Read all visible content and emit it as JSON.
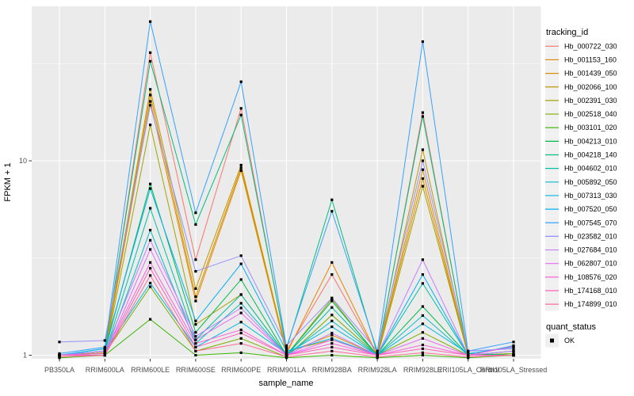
{
  "chart_data": {
    "type": "line",
    "title": "",
    "xlabel": "sample_name",
    "ylabel": "FPKM + 1",
    "y_scale": "log10",
    "y_ticks": [
      1,
      10
    ],
    "y_minor_ticks": [
      3.1623,
      31.623
    ],
    "ylim": [
      0.95,
      65
    ],
    "grid": "on",
    "legend_position": "right",
    "categories": [
      "PB350LA",
      "RRIM600LA",
      "RRIM600LE",
      "RRIM600SE",
      "RRIM600PE",
      "RRIM901LA",
      "RRIM928BA",
      "RRIM928LA",
      "RRIM928LE",
      "RRII105LA_Control",
      "RRII105LA_Stressed"
    ],
    "series": [
      {
        "name": "Hb_000722_030",
        "color": "#F8766D",
        "values": [
          1.0,
          1.05,
          36.0,
          3.1,
          18.6,
          1.05,
          2.6,
          1.0,
          17.7,
          1.0,
          1.05
        ]
      },
      {
        "name": "Hb_001153_160",
        "color": "#E58700",
        "values": [
          1.0,
          1.02,
          20.2,
          1.9,
          8.9,
          1.02,
          3.0,
          1.0,
          8.1,
          1.0,
          1.0
        ]
      },
      {
        "name": "Hb_001439_050",
        "color": "#D89000",
        "values": [
          1.0,
          1.03,
          21.8,
          2.0,
          9.2,
          1.03,
          1.27,
          1.0,
          9.0,
          1.0,
          1.0
        ]
      },
      {
        "name": "Hb_002066_100",
        "color": "#C09B00",
        "values": [
          1.0,
          1.05,
          23.3,
          2.2,
          9.5,
          1.05,
          1.2,
          1.0,
          11.4,
          1.0,
          1.02
        ]
      },
      {
        "name": "Hb_002391_030",
        "color": "#A3A500",
        "values": [
          0.98,
          1.0,
          15.3,
          1.44,
          2.05,
          1.0,
          1.95,
          0.98,
          7.4,
          1.0,
          1.0
        ]
      },
      {
        "name": "Hb_002518_040",
        "color": "#7CAE00",
        "values": [
          1.0,
          1.02,
          2.25,
          1.05,
          1.22,
          0.98,
          1.61,
          1.0,
          1.31,
          1.0,
          1.02
        ]
      },
      {
        "name": "Hb_003101_020",
        "color": "#39B600",
        "values": [
          0.97,
          1.0,
          1.53,
          1.0,
          1.03,
          0.97,
          1.0,
          0.97,
          1.0,
          0.97,
          1.0
        ]
      },
      {
        "name": "Hb_004213_010",
        "color": "#00BB4E",
        "values": [
          1.0,
          1.05,
          7.6,
          1.31,
          2.45,
          1.0,
          1.9,
          1.0,
          1.78,
          1.0,
          1.0
        ]
      },
      {
        "name": "Hb_004218_140",
        "color": "#00BF7D",
        "values": [
          1.0,
          1.08,
          32.5,
          4.7,
          17.2,
          1.08,
          6.3,
          1.02,
          16.9,
          1.02,
          1.0
        ]
      },
      {
        "name": "Hb_004602_010",
        "color": "#00C1A3",
        "values": [
          1.0,
          1.02,
          5.7,
          1.2,
          2.05,
          1.0,
          1.76,
          1.0,
          2.34,
          1.0,
          1.0
        ]
      },
      {
        "name": "Hb_005892_050",
        "color": "#00BFC4",
        "values": [
          1.0,
          1.0,
          4.4,
          1.15,
          1.85,
          1.0,
          1.5,
          1.0,
          1.6,
          1.0,
          1.05
        ]
      },
      {
        "name": "Hb_007313_030",
        "color": "#00BAE0",
        "values": [
          1.0,
          1.05,
          2.35,
          1.1,
          1.48,
          1.02,
          1.4,
          1.0,
          1.45,
          1.02,
          1.1
        ]
      },
      {
        "name": "Hb_007520_050",
        "color": "#00B0F6",
        "values": [
          1.0,
          1.08,
          7.2,
          1.5,
          2.95,
          1.05,
          1.22,
          1.0,
          2.6,
          1.0,
          1.12
        ]
      },
      {
        "name": "Hb_007545_070",
        "color": "#35A2FF",
        "values": [
          1.02,
          1.1,
          52.0,
          5.4,
          25.5,
          1.1,
          5.5,
          1.05,
          41.0,
          1.05,
          1.17
        ]
      },
      {
        "name": "Hb_023582_010",
        "color": "#9590FF",
        "values": [
          1.17,
          1.19,
          19.3,
          2.7,
          3.25,
          1.12,
          1.97,
          1.05,
          10.0,
          1.05,
          1.08
        ]
      },
      {
        "name": "Hb_027684_010",
        "color": "#C77CFF",
        "values": [
          1.0,
          1.05,
          3.9,
          1.25,
          1.75,
          1.0,
          1.3,
          1.0,
          3.1,
          1.0,
          1.05
        ]
      },
      {
        "name": "Hb_062807_010",
        "color": "#E76BF3",
        "values": [
          1.0,
          1.0,
          3.5,
          1.2,
          1.65,
          1.0,
          1.2,
          1.0,
          1.22,
          1.0,
          1.0
        ]
      },
      {
        "name": "Hb_108576_020",
        "color": "#FA62DB",
        "values": [
          1.0,
          1.02,
          3.0,
          1.15,
          1.35,
          1.0,
          1.15,
          1.0,
          1.13,
          1.0,
          1.11
        ]
      },
      {
        "name": "Hb_174168_010",
        "color": "#FF62BC",
        "values": [
          1.0,
          1.0,
          2.8,
          1.1,
          1.3,
          1.0,
          1.1,
          1.0,
          1.08,
          1.0,
          1.0
        ]
      },
      {
        "name": "Hb_174899_010",
        "color": "#FF6A98",
        "values": [
          0.98,
          1.0,
          2.57,
          1.05,
          1.15,
          0.98,
          1.05,
          0.98,
          1.03,
          0.98,
          1.0
        ]
      }
    ],
    "points": {
      "shape": "filled-square",
      "color": "#000000"
    },
    "legend": {
      "color": {
        "title": "tracking_id"
      },
      "shape": {
        "title": "quant_status",
        "items": [
          {
            "label": "OK",
            "color": "#000000"
          }
        ]
      }
    },
    "style": {
      "panel_bg": "#EBEBEB",
      "grid_color": "#FFFFFF",
      "tick_label_color": "#4D4D4D",
      "tick_mark_color": "#333333",
      "axis_title_color": "#000000",
      "legend_key_bg": "#F0F0F0"
    }
  }
}
